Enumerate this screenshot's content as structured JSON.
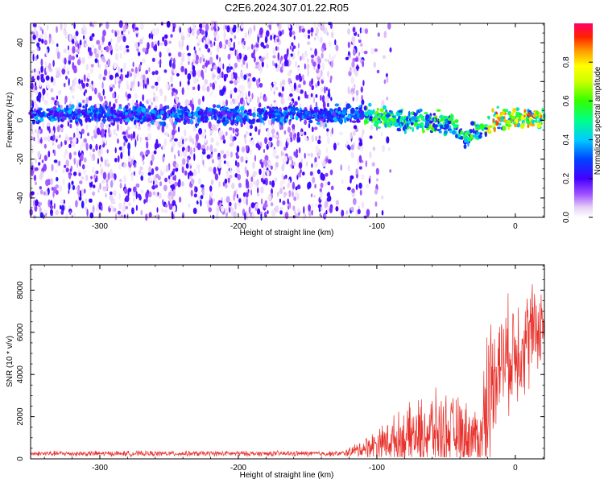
{
  "title": "C2E6.2024.307.01.22.R05",
  "spectrogram": {
    "type": "heatmap",
    "ylabel": "Frequency (Hz)",
    "xlabel": "Height of straight line (km)",
    "xlim": [
      -350,
      21
    ],
    "ylim": [
      -50,
      50
    ],
    "xticks": [
      -300,
      -200,
      -100,
      0
    ],
    "yticks": [
      -40,
      -20,
      0,
      20,
      40
    ],
    "colorbar_label": "Normalized spectral amplitude",
    "colorbar_ticks": [
      0.0,
      0.2,
      0.4,
      0.6,
      0.8
    ],
    "colorbar_tick_labels": [
      "0.0",
      "0.2",
      "0.4",
      "0.6",
      "0.8"
    ],
    "colorbar_range": [
      0,
      1
    ],
    "band_center_hz": [
      {
        "x": -350,
        "f": 3
      },
      {
        "x": -120,
        "f": 3
      },
      {
        "x": -100,
        "f": 2
      },
      {
        "x": -80,
        "f": 0
      },
      {
        "x": -60,
        "f": -1
      },
      {
        "x": -45,
        "f": -2
      },
      {
        "x": -35,
        "f": -10
      },
      {
        "x": -25,
        "f": -4
      },
      {
        "x": -15,
        "f": 0
      },
      {
        "x": 0,
        "f": 1
      },
      {
        "x": 21,
        "f": 1
      }
    ],
    "noise_extent_x": [
      -350,
      -110
    ]
  },
  "chart_data": {
    "type": "line",
    "ylabel": "SNR (10 * v/v)",
    "xlabel": "Height of straight line (km)",
    "xlim": [
      -350,
      21
    ],
    "ylim": [
      0,
      9200
    ],
    "xticks": [
      -300,
      -200,
      -100,
      0
    ],
    "yticks": [
      0,
      2000,
      4000,
      6000,
      8000
    ],
    "line_color": "#e8302a",
    "envelope": [
      {
        "x": -350,
        "mean": 250,
        "amp": 150
      },
      {
        "x": -125,
        "mean": 250,
        "amp": 150
      },
      {
        "x": -115,
        "mean": 400,
        "amp": 400
      },
      {
        "x": -100,
        "mean": 700,
        "amp": 900
      },
      {
        "x": -80,
        "mean": 1000,
        "amp": 1600
      },
      {
        "x": -60,
        "mean": 1300,
        "amp": 2200
      },
      {
        "x": -40,
        "mean": 1200,
        "amp": 2000
      },
      {
        "x": -25,
        "mean": 1000,
        "amp": 1500
      },
      {
        "x": -21,
        "mean": 2500,
        "amp": 5000
      },
      {
        "x": -15,
        "mean": 4300,
        "amp": 3000
      },
      {
        "x": 0,
        "mean": 5200,
        "amp": 3200
      },
      {
        "x": 10,
        "mean": 5800,
        "amp": 3000
      },
      {
        "x": 21,
        "mean": 6500,
        "amp": 2000
      }
    ]
  }
}
